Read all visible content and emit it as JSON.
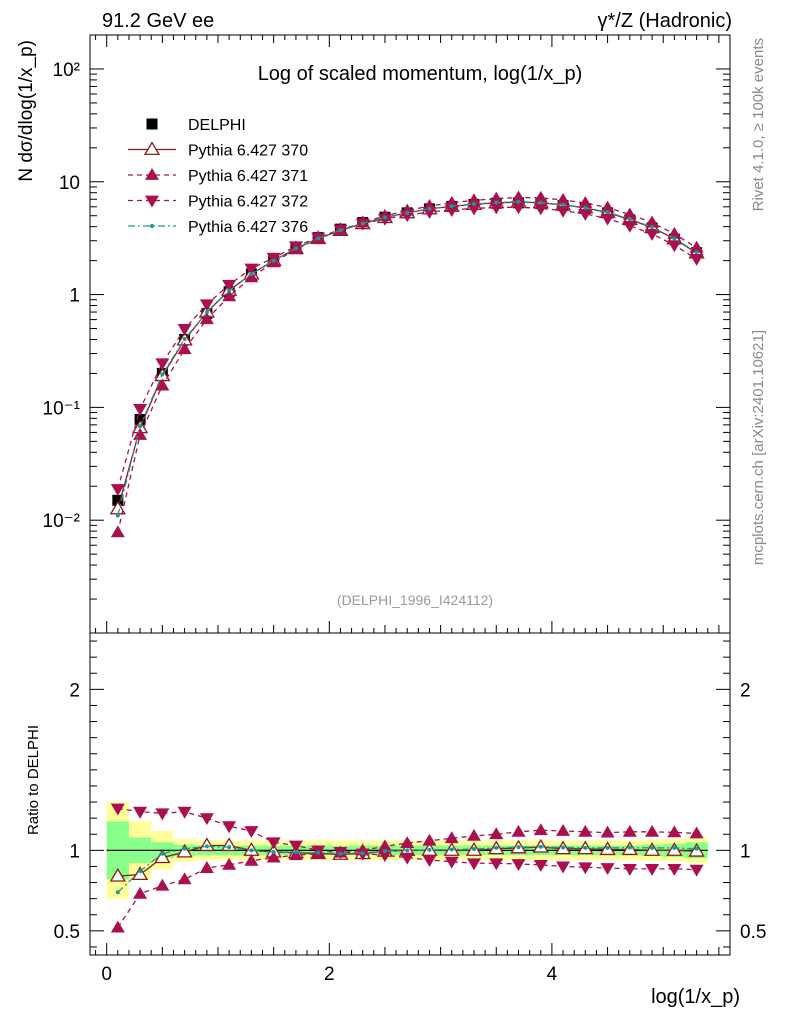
{
  "header": {
    "left": "91.2 GeV ee",
    "right": "γ*/Z (Hadronic)"
  },
  "side_labels": {
    "rivet": "Rivet 4.1.0, ≥ 100k events",
    "mcplots": "mcplots.cern.ch [arXiv:2401.10621]"
  },
  "chart_data": {
    "type": "line",
    "title": "Log of scaled momentum, log(1/x_p)",
    "watermark": "(DELPHI_1996_I424112)",
    "xlabel": "log(1/x_p)",
    "ylabel": "N dσ/dlog(1/x_p)",
    "ratio_ylabel": "Ratio to DELPHI",
    "xlim": [
      -0.15,
      5.6
    ],
    "ylim": [
      0.001,
      200
    ],
    "ratio_ylim": [
      0.35,
      2.35
    ],
    "y_scale": "log",
    "x_ticks": [
      0,
      2,
      4
    ],
    "x_tick_labels": [
      "0",
      "2",
      "4"
    ],
    "y_ticks": [
      0.01,
      0.1,
      1,
      10,
      100
    ],
    "y_tick_labels": [
      "10⁻²",
      "10⁻¹",
      "1",
      "10",
      "10²"
    ],
    "ratio_ticks": [
      0.5,
      1,
      2
    ],
    "ratio_tick_labels": [
      "0.5",
      "1",
      "2"
    ],
    "legend_position": "top-left",
    "x": [
      0.1,
      0.3,
      0.5,
      0.7,
      0.9,
      1.1,
      1.3,
      1.5,
      1.7,
      1.9,
      2.1,
      2.3,
      2.5,
      2.7,
      2.9,
      3.1,
      3.3,
      3.5,
      3.7,
      3.9,
      4.1,
      4.3,
      4.5,
      4.7,
      4.9,
      5.1,
      5.3
    ],
    "x_half_width": 0.1,
    "band_inner": [
      0.18,
      0.08,
      0.05,
      0.035,
      0.03,
      0.03,
      0.03,
      0.03,
      0.03,
      0.03,
      0.03,
      0.03,
      0.03,
      0.03,
      0.03,
      0.03,
      0.03,
      0.03,
      0.03,
      0.03,
      0.03,
      0.03,
      0.03,
      0.03,
      0.035,
      0.04,
      0.05
    ],
    "band_outer": [
      0.3,
      0.18,
      0.12,
      0.07,
      0.06,
      0.06,
      0.06,
      0.06,
      0.06,
      0.06,
      0.06,
      0.06,
      0.06,
      0.06,
      0.06,
      0.06,
      0.06,
      0.06,
      0.06,
      0.06,
      0.06,
      0.06,
      0.06,
      0.06,
      0.065,
      0.07,
      0.08
    ],
    "series": [
      {
        "name": "DELPHI",
        "marker": "square",
        "color": "#000000",
        "values": [
          0.015,
          0.078,
          0.2,
          0.4,
          0.68,
          1.06,
          1.52,
          2.02,
          2.6,
          3.2,
          3.8,
          4.35,
          4.85,
          5.3,
          5.75,
          6.05,
          6.3,
          6.45,
          6.5,
          6.4,
          6.15,
          5.8,
          5.3,
          4.6,
          3.9,
          3.1,
          2.35
        ]
      },
      {
        "name": "Pythia 6.427 370",
        "marker": "open-triangle-up",
        "line": "solid",
        "color": "#8b1a1a",
        "values": [
          0.0126,
          0.066,
          0.191,
          0.396,
          0.7,
          1.09,
          1.52,
          2.0,
          2.56,
          3.14,
          3.7,
          4.25,
          4.82,
          5.3,
          5.75,
          6.05,
          6.3,
          6.5,
          6.6,
          6.52,
          6.22,
          5.87,
          5.33,
          4.62,
          3.93,
          3.12,
          2.34
        ],
        "ratio": [
          0.84,
          0.85,
          0.955,
          0.99,
          1.03,
          1.03,
          1.0,
          0.99,
          0.985,
          0.98,
          0.975,
          0.98,
          0.995,
          1.0,
          1.0,
          1.0,
          1.0,
          1.01,
          1.015,
          1.02,
          1.01,
          1.01,
          1.005,
          1.005,
          1.0,
          1.0,
          0.995
        ]
      },
      {
        "name": "Pythia 6.427 371",
        "marker": "filled-triangle-up",
        "line": "dashed",
        "color": "#aa1050",
        "values": [
          0.0078,
          0.057,
          0.156,
          0.328,
          0.605,
          0.965,
          1.42,
          1.93,
          2.52,
          3.13,
          3.74,
          4.35,
          4.98,
          5.55,
          6.1,
          6.5,
          6.85,
          7.08,
          7.25,
          7.2,
          6.9,
          6.48,
          5.9,
          5.13,
          4.35,
          3.45,
          2.6
        ],
        "ratio": [
          0.52,
          0.73,
          0.78,
          0.82,
          0.89,
          0.91,
          0.935,
          0.955,
          0.97,
          0.98,
          0.985,
          1.0,
          1.025,
          1.045,
          1.06,
          1.075,
          1.09,
          1.1,
          1.115,
          1.125,
          1.12,
          1.115,
          1.11,
          1.115,
          1.115,
          1.112,
          1.105
        ]
      },
      {
        "name": "Pythia 6.427 372",
        "marker": "filled-triangle-down",
        "line": "dashed",
        "color": "#aa1050",
        "values": [
          0.0189,
          0.097,
          0.246,
          0.496,
          0.82,
          1.22,
          1.7,
          2.12,
          2.68,
          3.2,
          3.77,
          4.26,
          4.7,
          5.06,
          5.4,
          5.62,
          5.8,
          5.93,
          5.94,
          5.82,
          5.54,
          5.19,
          4.71,
          4.07,
          3.45,
          2.74,
          2.07
        ],
        "ratio": [
          1.26,
          1.24,
          1.23,
          1.24,
          1.2,
          1.15,
          1.12,
          1.05,
          1.03,
          1.0,
          0.99,
          0.98,
          0.97,
          0.955,
          0.94,
          0.93,
          0.92,
          0.92,
          0.915,
          0.91,
          0.9,
          0.895,
          0.89,
          0.885,
          0.885,
          0.885,
          0.88
        ]
      },
      {
        "name": "Pythia 6.427 376",
        "marker": "dot",
        "line": "dash-dot",
        "color": "#1a9a8a",
        "values": [
          0.011,
          0.068,
          0.196,
          0.404,
          0.697,
          1.08,
          1.52,
          2.0,
          2.57,
          3.15,
          3.72,
          4.27,
          4.83,
          5.3,
          5.77,
          6.08,
          6.35,
          6.55,
          6.65,
          6.55,
          6.26,
          5.9,
          5.38,
          4.68,
          3.96,
          3.15,
          2.37
        ],
        "ratio": [
          0.74,
          0.87,
          0.98,
          1.01,
          1.025,
          1.02,
          1.0,
          0.99,
          0.988,
          0.985,
          0.98,
          0.982,
          0.995,
          1.0,
          1.003,
          1.005,
          1.008,
          1.015,
          1.02,
          1.022,
          1.018,
          1.015,
          1.015,
          1.017,
          1.015,
          1.015,
          1.01
        ]
      }
    ]
  }
}
